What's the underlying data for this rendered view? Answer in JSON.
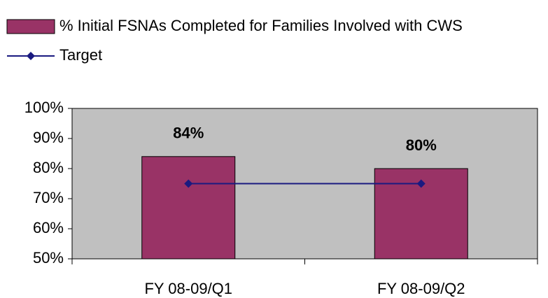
{
  "chart_data": {
    "type": "bar",
    "categories": [
      "FY 08-09/Q1",
      "FY 08-09/Q2"
    ],
    "series": [
      {
        "name": "% Initial FSNAs Completed for Families Involved with CWS",
        "color": "#993366",
        "values": [
          84,
          80
        ],
        "value_labels": [
          "84%",
          "80%"
        ]
      },
      {
        "name": "Target",
        "type": "line",
        "color": "#1a1a80",
        "values": [
          75,
          75
        ]
      }
    ],
    "ylim": [
      50,
      100
    ],
    "yticks": [
      {
        "value": 50,
        "label": "50%"
      },
      {
        "value": 60,
        "label": "60%"
      },
      {
        "value": 70,
        "label": "70%"
      },
      {
        "value": 80,
        "label": "80%"
      },
      {
        "value": 90,
        "label": "90%"
      },
      {
        "value": 100,
        "label": "100%"
      }
    ],
    "grid": false,
    "plot_background": "#c0c0c0"
  }
}
